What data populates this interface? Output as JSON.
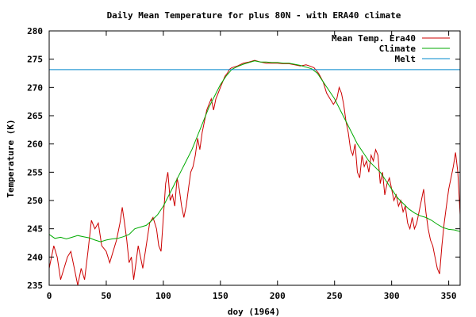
{
  "chart_data": {
    "type": "line",
    "title": "Daily Mean Temperature for plus 80N - with ERA40 climate",
    "xlabel": "doy (1964)",
    "ylabel": "Temperature (K)",
    "xlim": [
      0,
      360
    ],
    "ylim": [
      235,
      280
    ],
    "x_ticks": [
      0,
      50,
      100,
      150,
      200,
      250,
      300,
      350
    ],
    "y_ticks": [
      235,
      240,
      245,
      250,
      255,
      260,
      265,
      270,
      275,
      280
    ],
    "legend_position": "top-right",
    "grid": false,
    "series": [
      {
        "name": "Mean Temp. Era40",
        "color": "#cc0000",
        "points": [
          [
            0,
            238
          ],
          [
            4,
            242
          ],
          [
            7,
            240
          ],
          [
            10,
            236
          ],
          [
            13,
            238
          ],
          [
            16,
            240
          ],
          [
            19,
            241
          ],
          [
            22,
            238
          ],
          [
            25,
            235
          ],
          [
            28,
            238
          ],
          [
            31,
            236
          ],
          [
            34,
            241
          ],
          [
            37,
            246.5
          ],
          [
            40,
            245
          ],
          [
            43,
            246
          ],
          [
            46,
            242
          ],
          [
            50,
            241
          ],
          [
            53,
            239
          ],
          [
            56,
            241
          ],
          [
            59,
            243
          ],
          [
            62,
            246
          ],
          [
            64,
            248.8
          ],
          [
            66,
            246
          ],
          [
            68,
            243
          ],
          [
            70,
            239
          ],
          [
            72,
            240
          ],
          [
            74,
            236
          ],
          [
            76,
            239
          ],
          [
            78,
            242
          ],
          [
            80,
            240
          ],
          [
            82,
            238
          ],
          [
            85,
            242
          ],
          [
            88,
            246
          ],
          [
            91,
            247
          ],
          [
            94,
            245
          ],
          [
            96,
            242
          ],
          [
            98,
            241
          ],
          [
            100,
            247
          ],
          [
            102,
            253
          ],
          [
            104,
            255
          ],
          [
            106,
            250
          ],
          [
            108,
            251
          ],
          [
            110,
            249
          ],
          [
            112,
            254
          ],
          [
            114,
            252
          ],
          [
            116,
            249
          ],
          [
            118,
            247
          ],
          [
            120,
            249
          ],
          [
            122,
            252
          ],
          [
            124,
            255
          ],
          [
            126,
            256
          ],
          [
            128,
            258
          ],
          [
            130,
            261
          ],
          [
            132,
            259
          ],
          [
            134,
            262
          ],
          [
            136,
            264
          ],
          [
            138,
            266
          ],
          [
            140,
            267
          ],
          [
            142,
            268
          ],
          [
            144,
            266
          ],
          [
            146,
            268
          ],
          [
            148,
            269
          ],
          [
            150,
            270
          ],
          [
            152,
            271
          ],
          [
            154,
            272
          ],
          [
            156,
            272.5
          ],
          [
            158,
            273.2
          ],
          [
            160,
            273.5
          ],
          [
            165,
            273.8
          ],
          [
            170,
            274.3
          ],
          [
            175,
            274.5
          ],
          [
            180,
            274.8
          ],
          [
            185,
            274.5
          ],
          [
            190,
            274.3
          ],
          [
            195,
            274.3
          ],
          [
            200,
            274.3
          ],
          [
            205,
            274.2
          ],
          [
            210,
            274.2
          ],
          [
            215,
            274
          ],
          [
            220,
            273.8
          ],
          [
            225,
            274
          ],
          [
            228,
            273.8
          ],
          [
            232,
            273.5
          ],
          [
            236,
            272.5
          ],
          [
            240,
            271
          ],
          [
            243,
            269
          ],
          [
            246,
            268
          ],
          [
            249,
            267
          ],
          [
            252,
            268
          ],
          [
            254,
            270
          ],
          [
            256,
            269
          ],
          [
            258,
            267
          ],
          [
            260,
            264
          ],
          [
            262,
            262
          ],
          [
            264,
            259
          ],
          [
            266,
            258
          ],
          [
            268,
            260
          ],
          [
            270,
            255
          ],
          [
            272,
            254
          ],
          [
            274,
            258
          ],
          [
            276,
            256
          ],
          [
            278,
            257
          ],
          [
            280,
            255
          ],
          [
            282,
            258
          ],
          [
            284,
            257
          ],
          [
            286,
            259
          ],
          [
            288,
            258
          ],
          [
            290,
            253
          ],
          [
            292,
            255
          ],
          [
            294,
            251
          ],
          [
            296,
            253
          ],
          [
            298,
            254
          ],
          [
            300,
            252
          ],
          [
            302,
            250
          ],
          [
            304,
            251
          ],
          [
            306,
            249
          ],
          [
            308,
            250
          ],
          [
            310,
            248
          ],
          [
            312,
            249
          ],
          [
            314,
            246
          ],
          [
            316,
            245
          ],
          [
            318,
            247
          ],
          [
            320,
            245
          ],
          [
            322,
            246
          ],
          [
            324,
            248
          ],
          [
            326,
            250
          ],
          [
            328,
            252
          ],
          [
            330,
            248
          ],
          [
            332,
            245
          ],
          [
            334,
            243
          ],
          [
            336,
            242
          ],
          [
            338,
            240
          ],
          [
            340,
            238
          ],
          [
            342,
            237
          ],
          [
            344,
            242
          ],
          [
            346,
            246
          ],
          [
            348,
            249
          ],
          [
            350,
            252
          ],
          [
            352,
            254
          ],
          [
            354,
            256
          ],
          [
            356,
            258.5
          ],
          [
            358,
            255
          ],
          [
            360,
            247.5
          ]
        ]
      },
      {
        "name": "Climate",
        "color": "#00aa00",
        "points": [
          [
            0,
            244
          ],
          [
            5,
            243.3
          ],
          [
            10,
            243.5
          ],
          [
            15,
            243.2
          ],
          [
            20,
            243.5
          ],
          [
            25,
            243.8
          ],
          [
            30,
            243.6
          ],
          [
            35,
            243.4
          ],
          [
            40,
            243
          ],
          [
            45,
            242.7
          ],
          [
            50,
            243
          ],
          [
            55,
            243.2
          ],
          [
            60,
            243.3
          ],
          [
            65,
            243.6
          ],
          [
            70,
            244
          ],
          [
            75,
            245
          ],
          [
            80,
            245.3
          ],
          [
            85,
            245.6
          ],
          [
            90,
            246.5
          ],
          [
            95,
            247.5
          ],
          [
            100,
            249
          ],
          [
            105,
            251
          ],
          [
            110,
            253
          ],
          [
            115,
            255
          ],
          [
            120,
            257
          ],
          [
            125,
            259
          ],
          [
            130,
            261.5
          ],
          [
            135,
            264
          ],
          [
            140,
            266.5
          ],
          [
            145,
            268.5
          ],
          [
            150,
            270.5
          ],
          [
            155,
            272
          ],
          [
            160,
            273.2
          ],
          [
            165,
            273.7
          ],
          [
            170,
            274.1
          ],
          [
            175,
            274.4
          ],
          [
            180,
            274.7
          ],
          [
            185,
            274.5
          ],
          [
            190,
            274.5
          ],
          [
            195,
            274.4
          ],
          [
            200,
            274.4
          ],
          [
            205,
            274.3
          ],
          [
            210,
            274.3
          ],
          [
            215,
            274.1
          ],
          [
            220,
            273.9
          ],
          [
            225,
            273.6
          ],
          [
            230,
            273.3
          ],
          [
            235,
            272.5
          ],
          [
            240,
            271
          ],
          [
            245,
            269.5
          ],
          [
            250,
            268
          ],
          [
            255,
            266
          ],
          [
            260,
            264
          ],
          [
            265,
            262
          ],
          [
            270,
            260
          ],
          [
            275,
            258.5
          ],
          [
            280,
            257
          ],
          [
            285,
            256
          ],
          [
            290,
            255
          ],
          [
            295,
            253.5
          ],
          [
            300,
            252
          ],
          [
            305,
            250.5
          ],
          [
            310,
            249.5
          ],
          [
            315,
            248.5
          ],
          [
            320,
            247.8
          ],
          [
            325,
            247.3
          ],
          [
            330,
            247
          ],
          [
            335,
            246.5
          ],
          [
            340,
            245.8
          ],
          [
            345,
            245.2
          ],
          [
            350,
            244.9
          ],
          [
            355,
            244.8
          ],
          [
            360,
            244.5
          ]
        ]
      },
      {
        "name": "Melt",
        "color": "#0088cc",
        "points": [
          [
            0,
            273.15
          ],
          [
            360,
            273.15
          ]
        ]
      }
    ]
  }
}
